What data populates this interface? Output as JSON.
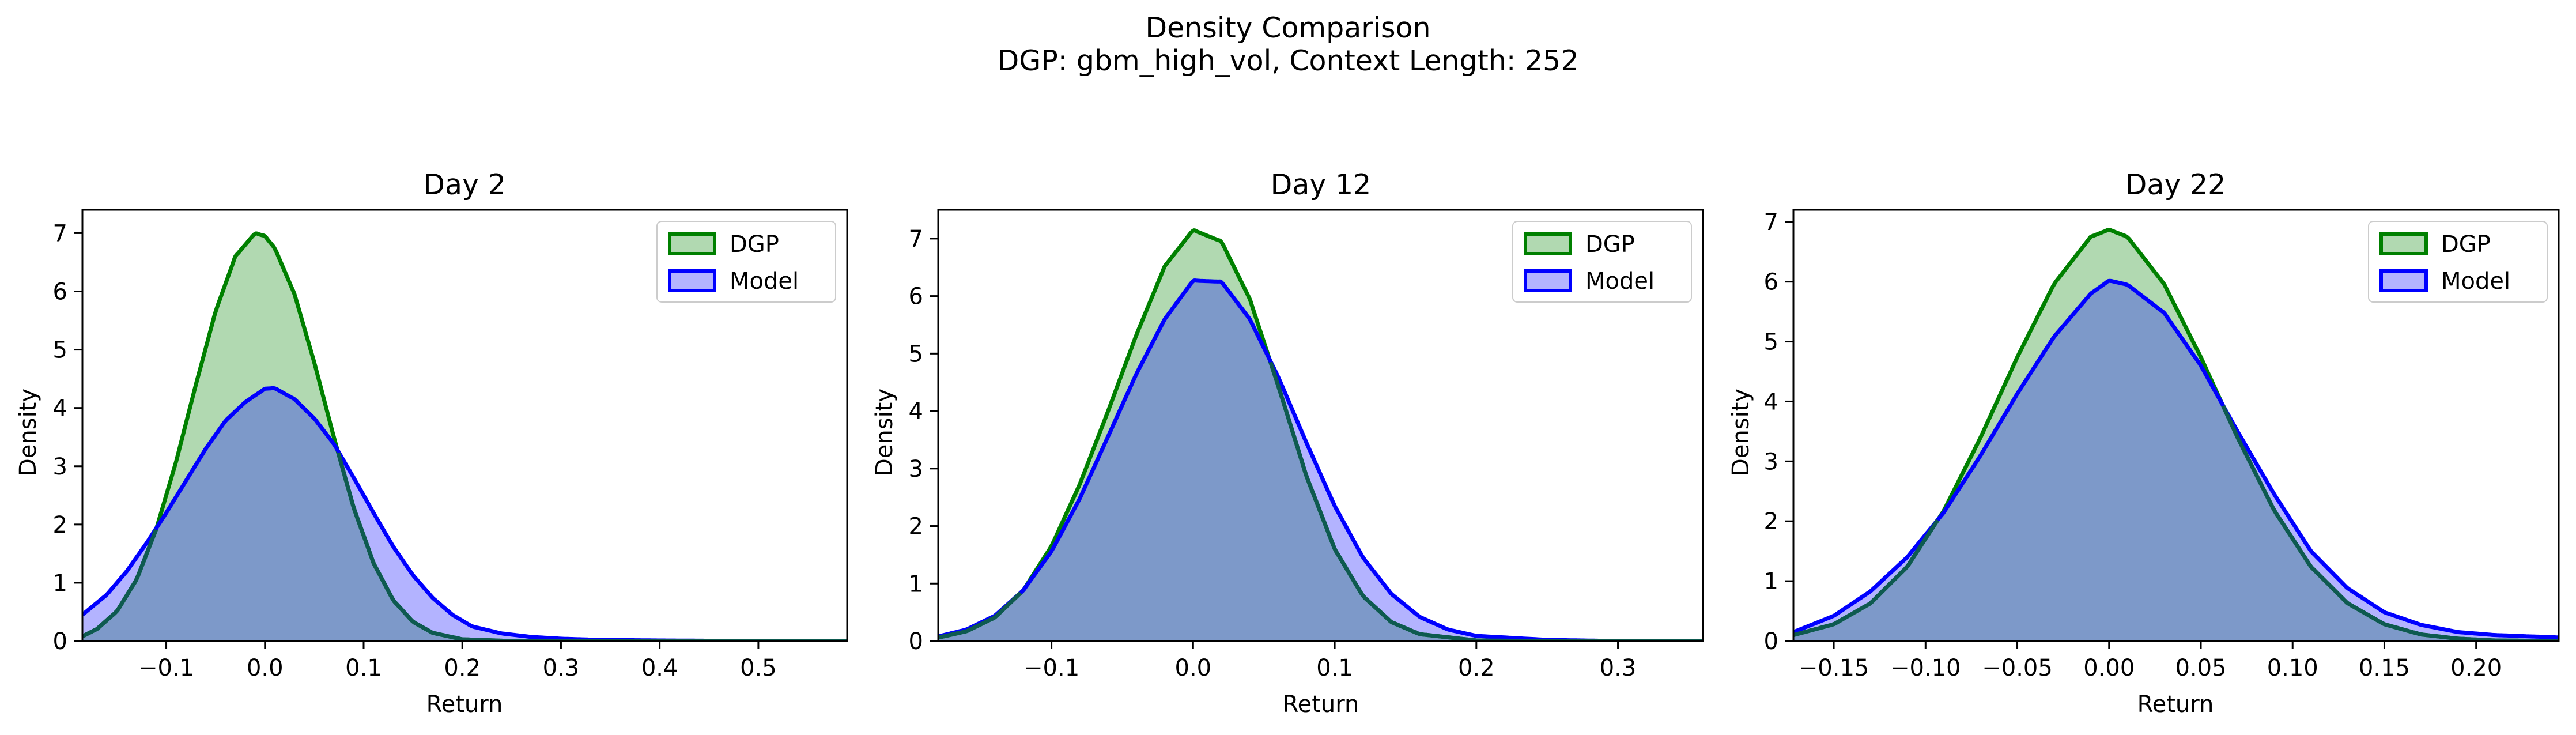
{
  "figure": {
    "title_line1": "Density Comparison",
    "title_line2": "DGP: gbm_high_vol, Context Length: 252"
  },
  "colors": {
    "dgp_line": "#008000",
    "dgp_fill": "#b1d9b1",
    "model_line": "#0000ff",
    "model_fill": "#b3b3ff",
    "overlap_fill": "#7d99c9",
    "overlap_line": "#0e5a50"
  },
  "chart_data": [
    {
      "type": "area",
      "title": "Day 2",
      "xlabel": "Return",
      "ylabel": "Density",
      "xlim": [
        -0.185,
        0.59
      ],
      "ylim": [
        0,
        7.4
      ],
      "xticks": [
        -0.1,
        0.0,
        0.1,
        0.2,
        0.3,
        0.4,
        0.5
      ],
      "xtick_labels": [
        "−0.1",
        "0.0",
        "0.1",
        "0.2",
        "0.3",
        "0.4",
        "0.5"
      ],
      "yticks": [
        0,
        1,
        2,
        3,
        4,
        5,
        6,
        7
      ],
      "ytick_labels": [
        "0",
        "1",
        "2",
        "3",
        "4",
        "5",
        "6",
        "7"
      ],
      "legend": [
        "DGP",
        "Model"
      ],
      "legend_position": "upper right",
      "series": [
        {
          "name": "DGP",
          "x": [
            -0.185,
            -0.17,
            -0.15,
            -0.13,
            -0.11,
            -0.09,
            -0.07,
            -0.05,
            -0.03,
            -0.01,
            0.0,
            0.01,
            0.03,
            0.05,
            0.07,
            0.09,
            0.11,
            0.13,
            0.15,
            0.17,
            0.2,
            0.25,
            0.3,
            0.4,
            0.5,
            0.59
          ],
          "y": [
            0.08,
            0.21,
            0.51,
            1.06,
            1.93,
            3.08,
            4.4,
            5.66,
            6.6,
            7.0,
            6.95,
            6.74,
            5.95,
            4.78,
            3.49,
            2.28,
            1.34,
            0.7,
            0.33,
            0.14,
            0.03,
            0.0,
            0.0,
            0.0,
            0.0,
            0.0
          ]
        },
        {
          "name": "Model",
          "x": [
            -0.185,
            -0.16,
            -0.14,
            -0.12,
            -0.1,
            -0.08,
            -0.06,
            -0.04,
            -0.02,
            0.0,
            0.01,
            0.03,
            0.05,
            0.07,
            0.09,
            0.11,
            0.13,
            0.15,
            0.17,
            0.19,
            0.21,
            0.24,
            0.27,
            0.3,
            0.34,
            0.4,
            0.5,
            0.59
          ],
          "y": [
            0.45,
            0.8,
            1.2,
            1.68,
            2.2,
            2.75,
            3.3,
            3.78,
            4.1,
            4.33,
            4.34,
            4.15,
            3.82,
            3.38,
            2.8,
            2.2,
            1.62,
            1.13,
            0.74,
            0.45,
            0.25,
            0.13,
            0.07,
            0.04,
            0.02,
            0.01,
            0.0,
            0.0
          ]
        }
      ]
    },
    {
      "type": "area",
      "title": "Day 12",
      "xlabel": "Return",
      "ylabel": "Density",
      "xlim": [
        -0.18,
        0.36
      ],
      "ylim": [
        0,
        7.5
      ],
      "xticks": [
        -0.1,
        0.0,
        0.1,
        0.2,
        0.3
      ],
      "xtick_labels": [
        "−0.1",
        "0.0",
        "0.1",
        "0.2",
        "0.3"
      ],
      "yticks": [
        0,
        1,
        2,
        3,
        4,
        5,
        6,
        7
      ],
      "ytick_labels": [
        "0",
        "1",
        "2",
        "3",
        "4",
        "5",
        "6",
        "7"
      ],
      "legend": [
        "DGP",
        "Model"
      ],
      "legend_position": "upper right",
      "series": [
        {
          "name": "DGP",
          "x": [
            -0.18,
            -0.16,
            -0.14,
            -0.12,
            -0.1,
            -0.08,
            -0.06,
            -0.04,
            -0.02,
            0.0,
            0.02,
            0.04,
            0.06,
            0.08,
            0.1,
            0.12,
            0.14,
            0.16,
            0.2,
            0.25,
            0.3,
            0.36
          ],
          "y": [
            0.06,
            0.17,
            0.41,
            0.88,
            1.65,
            2.73,
            4.0,
            5.33,
            6.52,
            7.15,
            6.95,
            5.95,
            4.45,
            2.87,
            1.6,
            0.78,
            0.33,
            0.12,
            0.01,
            0.0,
            0.0,
            0.0
          ]
        },
        {
          "name": "Model",
          "x": [
            -0.18,
            -0.16,
            -0.14,
            -0.12,
            -0.1,
            -0.08,
            -0.06,
            -0.04,
            -0.02,
            0.0,
            0.02,
            0.04,
            0.06,
            0.08,
            0.1,
            0.12,
            0.14,
            0.16,
            0.18,
            0.2,
            0.25,
            0.3,
            0.36
          ],
          "y": [
            0.08,
            0.2,
            0.44,
            0.88,
            1.56,
            2.48,
            3.56,
            4.65,
            5.6,
            6.27,
            6.25,
            5.6,
            4.6,
            3.45,
            2.35,
            1.45,
            0.82,
            0.42,
            0.2,
            0.09,
            0.02,
            0.0,
            0.0
          ]
        }
      ]
    },
    {
      "type": "area",
      "title": "Day 22",
      "xlabel": "Return",
      "ylabel": "Density",
      "xlim": [
        -0.172,
        0.245
      ],
      "ylim": [
        0,
        7.2
      ],
      "xticks": [
        -0.15,
        -0.1,
        -0.05,
        0.0,
        0.05,
        0.1,
        0.15,
        0.2
      ],
      "xtick_labels": [
        "−0.15",
        "−0.10",
        "−0.05",
        "0.00",
        "0.05",
        "0.10",
        "0.15",
        "0.20"
      ],
      "yticks": [
        0,
        1,
        2,
        3,
        4,
        5,
        6,
        7
      ],
      "ytick_labels": [
        "0",
        "1",
        "2",
        "3",
        "4",
        "5",
        "6",
        "7"
      ],
      "legend": [
        "DGP",
        "Model"
      ],
      "legend_position": "upper right",
      "series": [
        {
          "name": "DGP",
          "x": [
            -0.172,
            -0.15,
            -0.13,
            -0.11,
            -0.09,
            -0.07,
            -0.05,
            -0.03,
            -0.01,
            0.0,
            0.01,
            0.03,
            0.05,
            0.07,
            0.09,
            0.11,
            0.13,
            0.15,
            0.17,
            0.19,
            0.21,
            0.245
          ],
          "y": [
            0.1,
            0.28,
            0.63,
            1.24,
            2.18,
            3.4,
            4.74,
            5.96,
            6.75,
            6.87,
            6.75,
            5.96,
            4.74,
            3.4,
            2.18,
            1.24,
            0.63,
            0.28,
            0.11,
            0.04,
            0.01,
            0.0
          ]
        },
        {
          "name": "Model",
          "x": [
            -0.172,
            -0.15,
            -0.13,
            -0.11,
            -0.09,
            -0.07,
            -0.05,
            -0.03,
            -0.01,
            0.0,
            0.01,
            0.03,
            0.05,
            0.07,
            0.09,
            0.11,
            0.13,
            0.15,
            0.17,
            0.19,
            0.21,
            0.245
          ],
          "y": [
            0.15,
            0.42,
            0.83,
            1.4,
            2.15,
            3.1,
            4.13,
            5.08,
            5.8,
            6.02,
            5.95,
            5.48,
            4.6,
            3.5,
            2.45,
            1.5,
            0.88,
            0.48,
            0.27,
            0.15,
            0.1,
            0.06
          ]
        }
      ]
    }
  ]
}
